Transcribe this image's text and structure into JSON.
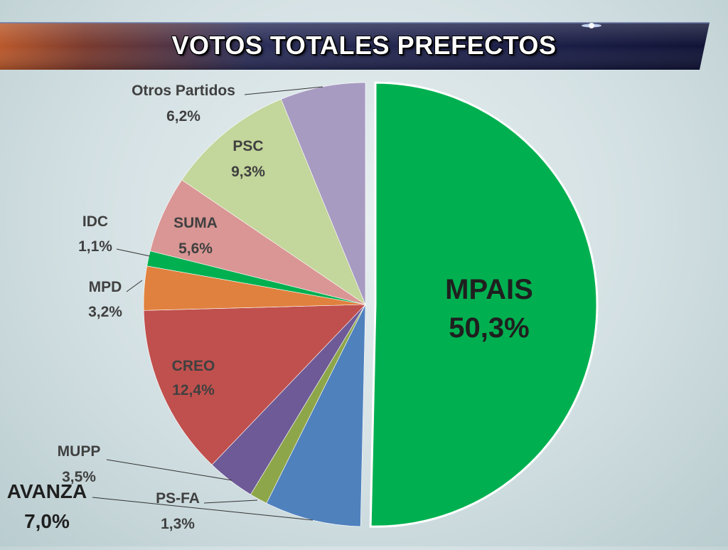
{
  "header": {
    "title": "VOTOS TOTALES PREFECTOS"
  },
  "colors": {
    "title_bar_left": "#b8572a",
    "title_bar_mid": "#2a2d5a",
    "title_bar_right": "#12153a"
  },
  "chart_data": {
    "type": "pie",
    "title": "VOTOS TOTALES PREFECTOS",
    "slices": [
      {
        "label": "MPAIS",
        "value": 50.3,
        "value_text": "50,3%",
        "color": "#00b050",
        "exploded": true
      },
      {
        "label": "AVANZA",
        "value": 7.0,
        "value_text": "7,0%",
        "color": "#4f81bd"
      },
      {
        "label": "PS-FA",
        "value": 1.3,
        "value_text": "1,3%",
        "color": "#8ea64a"
      },
      {
        "label": "MUPP",
        "value": 3.5,
        "value_text": "3,5%",
        "color": "#6d5a96"
      },
      {
        "label": "CREO",
        "value": 12.4,
        "value_text": "12,4%",
        "color": "#c0504d"
      },
      {
        "label": "MPD",
        "value": 3.2,
        "value_text": "3,2%",
        "color": "#e0813f"
      },
      {
        "label": "IDC",
        "value": 1.1,
        "value_text": "1,1%",
        "color": "#00b050"
      },
      {
        "label": "SUMA",
        "value": 5.6,
        "value_text": "5,6%",
        "color": "#d99694"
      },
      {
        "label": "PSC",
        "value": 9.3,
        "value_text": "9,3%",
        "color": "#c3d69b"
      },
      {
        "label": "Otros Partidos",
        "value": 6.2,
        "value_text": "6,2%",
        "color": "#a89bc2"
      }
    ]
  }
}
